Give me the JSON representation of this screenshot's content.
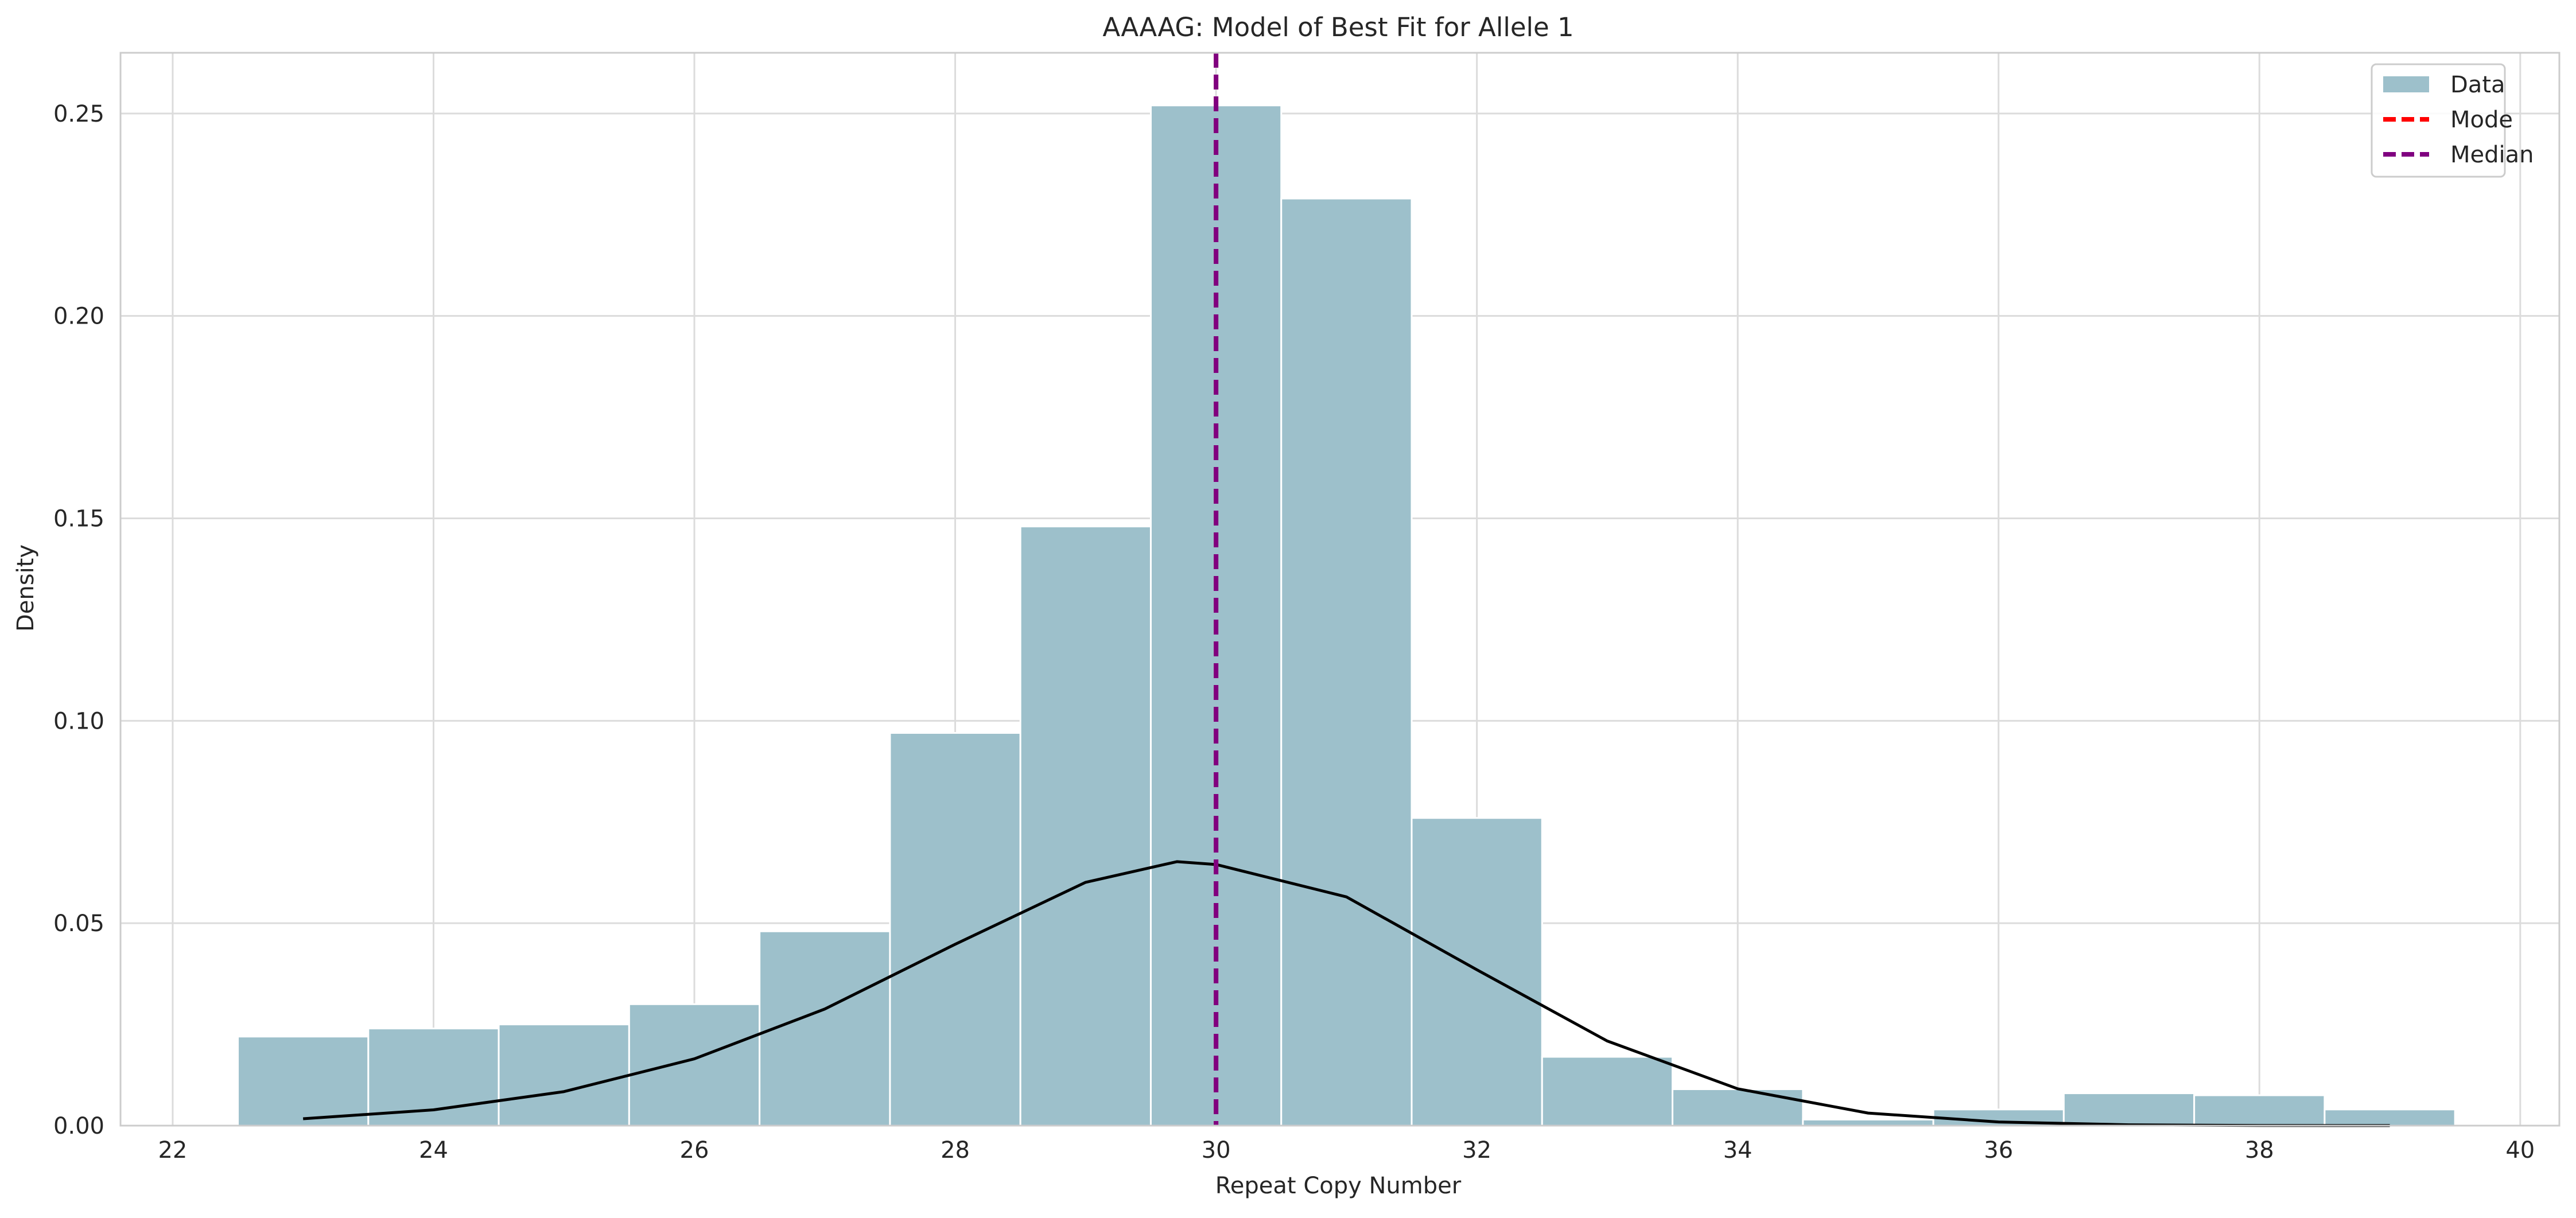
{
  "chart_data": {
    "type": "bar",
    "title": "AAAAG: Model of Best Fit for Allele 1",
    "xlabel": "Repeat Copy Number",
    "ylabel": "Density",
    "xlim": [
      21.6,
      40.3
    ],
    "ylim": [
      0,
      0.265
    ],
    "xticks": [
      22,
      24,
      26,
      28,
      30,
      32,
      34,
      36,
      38,
      40
    ],
    "yticks": [
      0.0,
      0.05,
      0.1,
      0.15,
      0.2,
      0.25
    ],
    "xtick_labels": [
      "22",
      "24",
      "26",
      "28",
      "30",
      "32",
      "34",
      "36",
      "38",
      "40"
    ],
    "ytick_labels": [
      "0.00",
      "0.05",
      "0.10",
      "0.15",
      "0.20",
      "0.25"
    ],
    "grid": true,
    "legend_position": "top-right",
    "bin_edges": [
      22.5,
      23.5,
      24.5,
      25.5,
      26.5,
      27.5,
      28.5,
      29.5,
      30.5,
      31.5,
      32.5,
      33.5,
      34.5,
      35.5,
      36.5,
      37.5,
      38.5,
      39.5
    ],
    "series": [
      {
        "name": "Data",
        "kind": "histogram",
        "color": "#9dc0cb",
        "values": [
          0.022,
          0.024,
          0.025,
          0.03,
          0.048,
          0.097,
          0.148,
          0.252,
          0.229,
          0.076,
          0.017,
          0.009,
          0.0015,
          0.004,
          0.008,
          0.0075,
          0.004
        ]
      },
      {
        "name": "Mode",
        "kind": "vline",
        "color": "#ff0000",
        "style": "dashed",
        "x": 30.0
      },
      {
        "name": "Median",
        "kind": "vline",
        "color": "#800080",
        "style": "dashed",
        "x": 30.0
      },
      {
        "kind": "curve",
        "color": "#000000",
        "style": "solid",
        "x": [
          23,
          24,
          25,
          26,
          27,
          28,
          29,
          29.7,
          30,
          31,
          32,
          33,
          34,
          35,
          36,
          37,
          38,
          39
        ],
        "y": [
          0.0017,
          0.0039,
          0.0084,
          0.0165,
          0.0288,
          0.0448,
          0.0601,
          0.0652,
          0.0645,
          0.0565,
          0.0385,
          0.0209,
          0.0091,
          0.0031,
          0.0009,
          0.0002,
          4e-05,
          1e-05
        ]
      }
    ]
  }
}
